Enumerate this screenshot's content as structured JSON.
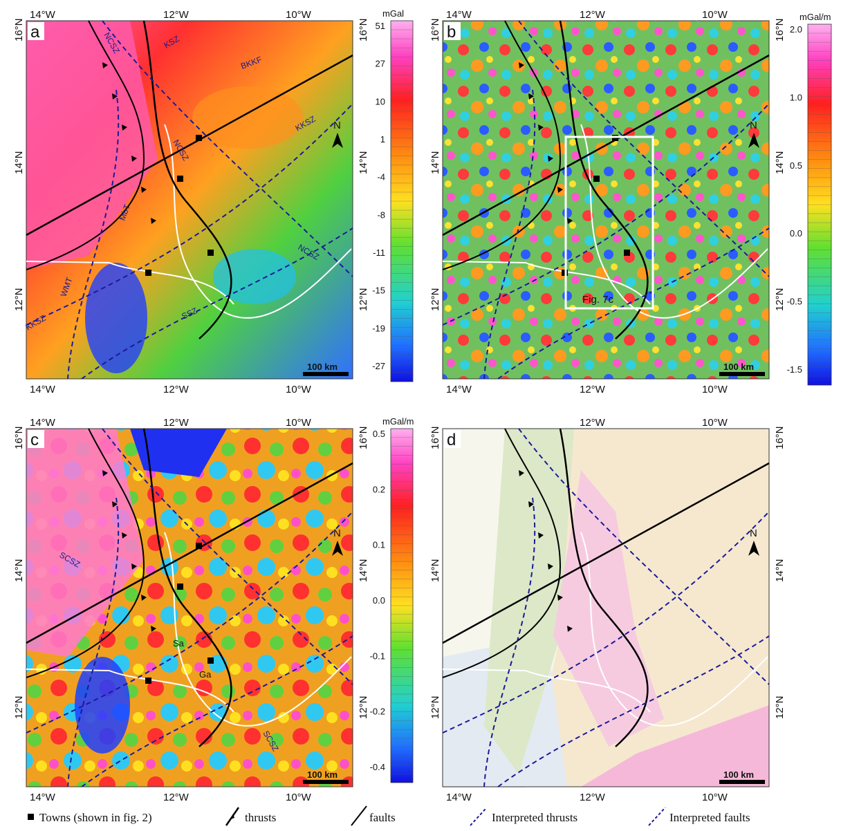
{
  "panels": [
    {
      "letter": "a",
      "colorbar": {
        "unit": "mGal",
        "ticks": [
          "51",
          "27",
          "10",
          "1",
          "-4",
          "-8",
          "-11",
          "-15",
          "-19",
          "-27"
        ]
      },
      "labels": [
        "NCSZ",
        "KSZ",
        "BKKF",
        "NCSZ",
        "KKSZ",
        "MbT",
        "NCSZ",
        "WMT",
        "KKSZ",
        "SSZ"
      ]
    },
    {
      "letter": "b",
      "colorbar": {
        "unit": "mGal/m",
        "ticks": [
          "2.0",
          "1.0",
          "0.5",
          "0.0",
          "-0.5",
          "-1.5"
        ]
      },
      "box_label": "Fig. 7c"
    },
    {
      "letter": "c",
      "colorbar": {
        "unit": "mGal/m",
        "ticks": [
          "0.5",
          "0.2",
          "0.1",
          "0.0",
          "-0.1",
          "-0.2",
          "-0.4"
        ]
      },
      "labels": [
        "SCSZ",
        "SCSZ"
      ],
      "towns": [
        "Sa",
        "Ga"
      ]
    },
    {
      "letter": "d"
    }
  ],
  "axes": {
    "lon_labels": [
      "14°W",
      "12°W",
      "10°W"
    ],
    "lat_labels": [
      "16°N",
      "14°N",
      "12°N"
    ],
    "north": "N",
    "scale": "100 km"
  },
  "legend": {
    "towns": "Towns (shown in fig. 2)",
    "thrusts": "thrusts",
    "faults": "faults",
    "interpreted_thrusts": "Interpreted thrusts",
    "interpreted_faults": "Interpreted faults"
  },
  "colors": {
    "fault": "#000000",
    "interpreted": "#1a1a9a",
    "border": "#ffffff"
  }
}
